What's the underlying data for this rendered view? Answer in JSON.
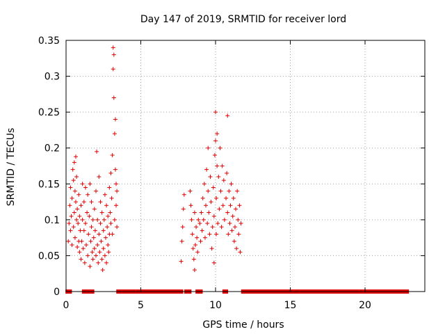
{
  "chart_data": {
    "type": "scatter",
    "title": "Day 147 of 2019, SRMTID for receiver lord",
    "xlabel": "GPS time / hours",
    "ylabel": "SRMTID / TECUs",
    "xlim": [
      0,
      24
    ],
    "ylim": [
      0,
      0.35
    ],
    "xticks": [
      0,
      5,
      10,
      15,
      20
    ],
    "xtick_labels": [
      "0",
      "5",
      "10",
      "15",
      "20"
    ],
    "yticks": [
      0,
      0.05,
      0.1,
      0.15,
      0.2,
      0.25,
      0.3,
      0.35
    ],
    "ytick_labels": [
      "0",
      "0.05",
      "0.1",
      "0.15",
      "0.2",
      "0.25",
      "0.3",
      "0.35"
    ],
    "grid": true,
    "marker": "+",
    "series_color": "#dd0000",
    "series": [
      {
        "name": "SRMTID",
        "points": [
          [
            0.15,
            0.07
          ],
          [
            0.2,
            0.095
          ],
          [
            0.25,
            0.12
          ],
          [
            0.3,
            0.085
          ],
          [
            0.3,
            0.145
          ],
          [
            0.35,
            0.105
          ],
          [
            0.4,
            0.065
          ],
          [
            0.4,
            0.13
          ],
          [
            0.45,
            0.17
          ],
          [
            0.5,
            0.09
          ],
          [
            0.5,
            0.155
          ],
          [
            0.55,
            0.11
          ],
          [
            0.55,
            0.18
          ],
          [
            0.6,
            0.075
          ],
          [
            0.6,
            0.14
          ],
          [
            0.65,
            0.188
          ],
          [
            0.65,
            0.125
          ],
          [
            0.7,
            0.1
          ],
          [
            0.7,
            0.16
          ],
          [
            0.75,
            0.115
          ],
          [
            0.75,
            0.062
          ],
          [
            0.8,
            0.095
          ],
          [
            0.85,
            0.07
          ],
          [
            0.85,
            0.135
          ],
          [
            0.9,
            0.055
          ],
          [
            0.9,
            0.105
          ],
          [
            0.95,
            0.085
          ],
          [
            1.0,
            0.045
          ],
          [
            1.0,
            0.12
          ],
          [
            1.05,
            0.07
          ],
          [
            1.1,
            0.1
          ],
          [
            1.1,
            0.15
          ],
          [
            1.15,
            0.06
          ],
          [
            1.2,
            0.085
          ],
          [
            1.2,
            0.125
          ],
          [
            1.25,
            0.04
          ],
          [
            1.3,
            0.095
          ],
          [
            1.3,
            0.145
          ],
          [
            1.35,
            0.065
          ],
          [
            1.4,
            0.11
          ],
          [
            1.45,
            0.05
          ],
          [
            1.45,
            0.135
          ],
          [
            1.5,
            0.08
          ],
          [
            1.55,
            0.105
          ],
          [
            1.6,
            0.035
          ],
          [
            1.6,
            0.15
          ],
          [
            1.65,
            0.07
          ],
          [
            1.7,
            0.09
          ],
          [
            1.7,
            0.125
          ],
          [
            1.75,
            0.055
          ],
          [
            1.8,
            0.1
          ],
          [
            1.8,
            0.045
          ],
          [
            1.85,
            0.075
          ],
          [
            1.9,
            0.115
          ],
          [
            1.9,
            0.06
          ],
          [
            1.95,
            0.085
          ],
          [
            2.0,
            0.05
          ],
          [
            2.0,
            0.14
          ],
          [
            2.05,
            0.195
          ],
          [
            2.1,
            0.065
          ],
          [
            2.1,
            0.1
          ],
          [
            2.15,
            0.04
          ],
          [
            2.2,
            0.08
          ],
          [
            2.2,
            0.16
          ],
          [
            2.25,
            0.055
          ],
          [
            2.3,
            0.095
          ],
          [
            2.3,
            0.125
          ],
          [
            2.35,
            0.07
          ],
          [
            2.4,
            0.045
          ],
          [
            2.4,
            0.11
          ],
          [
            2.45,
            0.03
          ],
          [
            2.5,
            0.085
          ],
          [
            2.5,
            0.06
          ],
          [
            2.55,
            0.1
          ],
          [
            2.6,
            0.05
          ],
          [
            2.6,
            0.135
          ],
          [
            2.65,
            0.075
          ],
          [
            2.7,
            0.04
          ],
          [
            2.7,
            0.12
          ],
          [
            2.75,
            0.09
          ],
          [
            2.8,
            0.065
          ],
          [
            2.8,
            0.105
          ],
          [
            2.85,
            0.055
          ],
          [
            2.9,
            0.145
          ],
          [
            2.9,
            0.08
          ],
          [
            2.95,
            0.11
          ],
          [
            3.0,
            0.095
          ],
          [
            3.0,
            0.165
          ],
          [
            3.05,
            0.13
          ],
          [
            3.1,
            0.19
          ],
          [
            3.1,
            0.08
          ],
          [
            3.15,
            0.34
          ],
          [
            3.15,
            0.31
          ],
          [
            3.2,
            0.33
          ],
          [
            3.2,
            0.27
          ],
          [
            3.25,
            0.22
          ],
          [
            3.25,
            0.1
          ],
          [
            3.3,
            0.24
          ],
          [
            3.3,
            0.17
          ],
          [
            3.35,
            0.15
          ],
          [
            3.35,
            0.12
          ],
          [
            3.4,
            0.09
          ],
          [
            3.4,
            0.14
          ],
          [
            7.7,
            0.042
          ],
          [
            7.75,
            0.07
          ],
          [
            7.8,
            0.09
          ],
          [
            7.85,
            0.115
          ],
          [
            7.9,
            0.135
          ],
          [
            8.3,
            0.14
          ],
          [
            8.35,
            0.12
          ],
          [
            8.4,
            0.1
          ],
          [
            8.45,
            0.08
          ],
          [
            8.5,
            0.06
          ],
          [
            8.55,
            0.045
          ],
          [
            8.6,
            0.03
          ],
          [
            8.6,
            0.11
          ],
          [
            8.65,
            0.065
          ],
          [
            8.7,
            0.09
          ],
          [
            8.75,
            0.075
          ],
          [
            8.8,
            0.055
          ],
          [
            8.85,
            0.1
          ],
          [
            8.95,
            0.095
          ],
          [
            9.0,
            0.07
          ],
          [
            9.05,
            0.11
          ],
          [
            9.1,
            0.085
          ],
          [
            9.15,
            0.13
          ],
          [
            9.2,
            0.1
          ],
          [
            9.25,
            0.15
          ],
          [
            9.3,
            0.075
          ],
          [
            9.35,
            0.12
          ],
          [
            9.4,
            0.17
          ],
          [
            9.45,
            0.095
          ],
          [
            9.5,
            0.14
          ],
          [
            9.5,
            0.2
          ],
          [
            9.55,
            0.11
          ],
          [
            9.6,
            0.08
          ],
          [
            9.65,
            0.16
          ],
          [
            9.7,
            0.125
          ],
          [
            9.75,
            0.06
          ],
          [
            9.8,
            0.09
          ],
          [
            9.85,
            0.145
          ],
          [
            9.9,
            0.105
          ],
          [
            9.9,
            0.04
          ],
          [
            9.95,
            0.19
          ],
          [
            10.0,
            0.21
          ],
          [
            10.0,
            0.25
          ],
          [
            10.05,
            0.13
          ],
          [
            10.05,
            0.08
          ],
          [
            10.1,
            0.22
          ],
          [
            10.1,
            0.175
          ],
          [
            10.15,
            0.095
          ],
          [
            10.2,
            0.16
          ],
          [
            10.25,
            0.115
          ],
          [
            10.3,
            0.2
          ],
          [
            10.35,
            0.14
          ],
          [
            10.4,
            0.09
          ],
          [
            10.45,
            0.175
          ],
          [
            10.5,
            0.12
          ],
          [
            10.55,
            0.155
          ],
          [
            10.6,
            0.1
          ],
          [
            10.7,
            0.13
          ],
          [
            10.75,
            0.165
          ],
          [
            10.8,
            0.245
          ],
          [
            10.8,
            0.11
          ],
          [
            10.85,
            0.08
          ],
          [
            10.9,
            0.14
          ],
          [
            10.95,
            0.095
          ],
          [
            11.0,
            0.12
          ],
          [
            11.05,
            0.15
          ],
          [
            11.1,
            0.085
          ],
          [
            11.15,
            0.105
          ],
          [
            11.2,
            0.13
          ],
          [
            11.25,
            0.07
          ],
          [
            11.3,
            0.09
          ],
          [
            11.35,
            0.115
          ],
          [
            11.4,
            0.06
          ],
          [
            11.45,
            0.14
          ],
          [
            11.5,
            0.1
          ],
          [
            11.55,
            0.08
          ],
          [
            11.6,
            0.12
          ],
          [
            11.65,
            0.055
          ],
          [
            11.7,
            0.095
          ]
        ],
        "zero_segments": [
          [
            0.1,
            0.25
          ],
          [
            1.2,
            1.3
          ],
          [
            1.45,
            1.55
          ],
          [
            1.65,
            1.75
          ],
          [
            3.5,
            7.7
          ],
          [
            8.05,
            8.1
          ],
          [
            8.2,
            8.25
          ],
          [
            8.8,
            9.0
          ],
          [
            10.6,
            10.7
          ],
          [
            11.85,
            22.8
          ]
        ]
      }
    ]
  }
}
